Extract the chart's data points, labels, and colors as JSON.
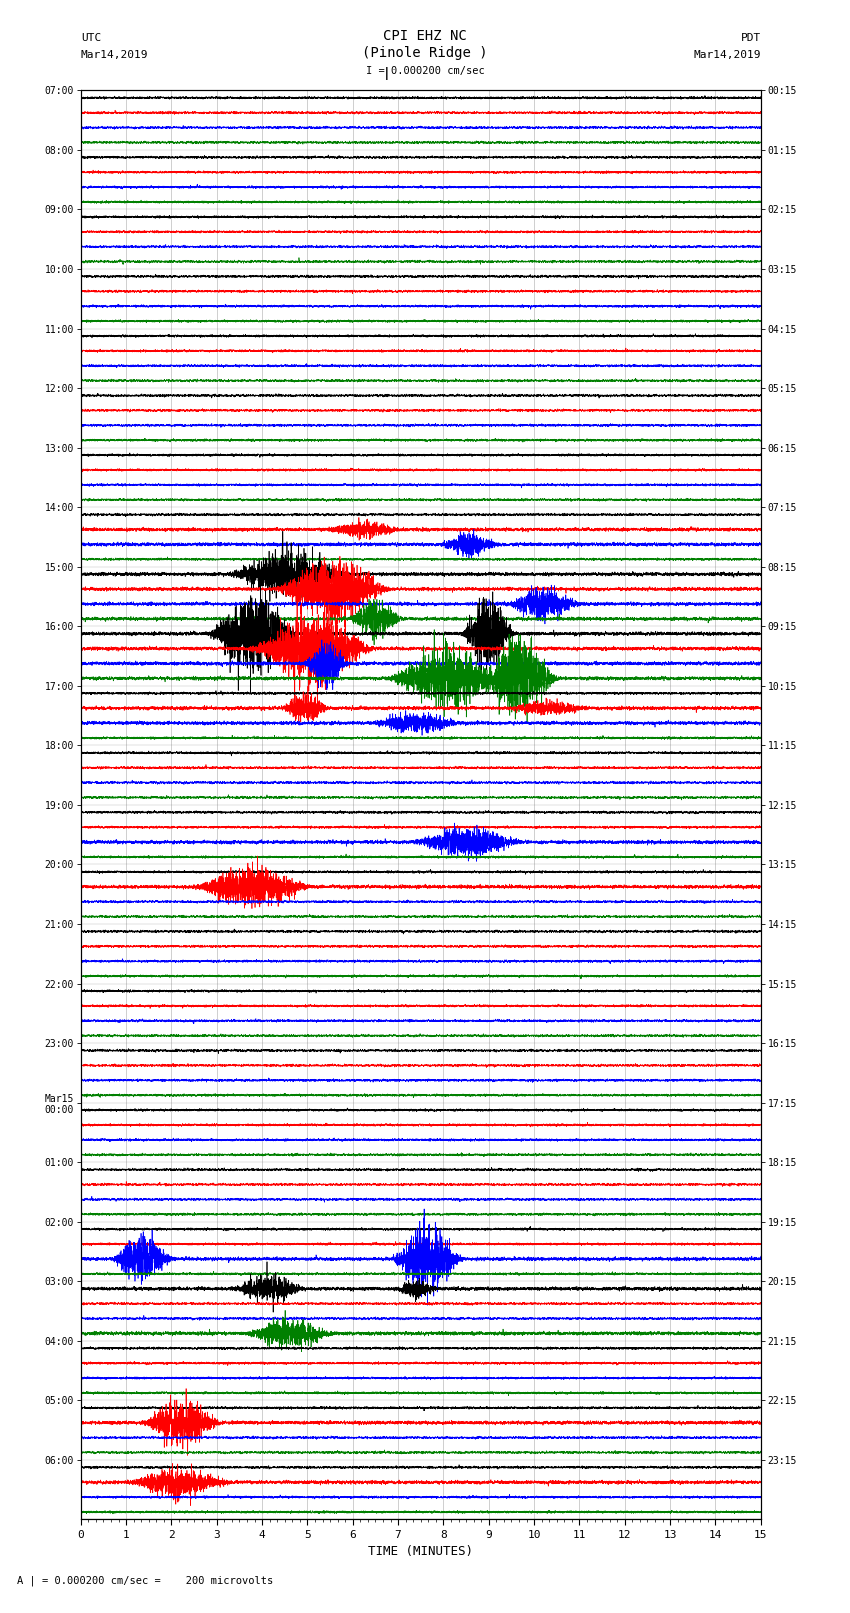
{
  "title_line1": "CPI EHZ NC",
  "title_line2": "(Pinole Ridge )",
  "scale_label": "I = 0.000200 cm/sec",
  "left_header_line1": "UTC",
  "left_header_line2": "Mar14,2019",
  "right_header_line1": "PDT",
  "right_header_line2": "Mar14,2019",
  "left_times": [
    "07:00",
    "08:00",
    "09:00",
    "10:00",
    "11:00",
    "12:00",
    "13:00",
    "14:00",
    "15:00",
    "16:00",
    "17:00",
    "18:00",
    "19:00",
    "20:00",
    "21:00",
    "22:00",
    "23:00",
    "Mar15\n00:00",
    "01:00",
    "02:00",
    "03:00",
    "04:00",
    "05:00",
    "06:00"
  ],
  "right_times": [
    "00:15",
    "01:15",
    "02:15",
    "03:15",
    "04:15",
    "05:15",
    "06:15",
    "07:15",
    "08:15",
    "09:15",
    "10:15",
    "11:15",
    "12:15",
    "13:15",
    "14:15",
    "15:15",
    "16:15",
    "17:15",
    "18:15",
    "19:15",
    "20:15",
    "21:15",
    "22:15",
    "23:15"
  ],
  "n_rows": 24,
  "traces_per_row": 4,
  "colors": [
    "black",
    "red",
    "blue",
    "green"
  ],
  "xlabel": "TIME (MINUTES)",
  "xlim": [
    0,
    15
  ],
  "xticks": [
    0,
    1,
    2,
    3,
    4,
    5,
    6,
    7,
    8,
    9,
    10,
    11,
    12,
    13,
    14,
    15
  ],
  "footnote": "A | = 0.000200 cm/sec =    200 microvolts",
  "bg_color": "#ffffff",
  "figure_width": 8.5,
  "figure_height": 16.13,
  "dpi": 100,
  "base_noise": 0.08,
  "base_amplitude": 0.35,
  "sample_rate": 500
}
